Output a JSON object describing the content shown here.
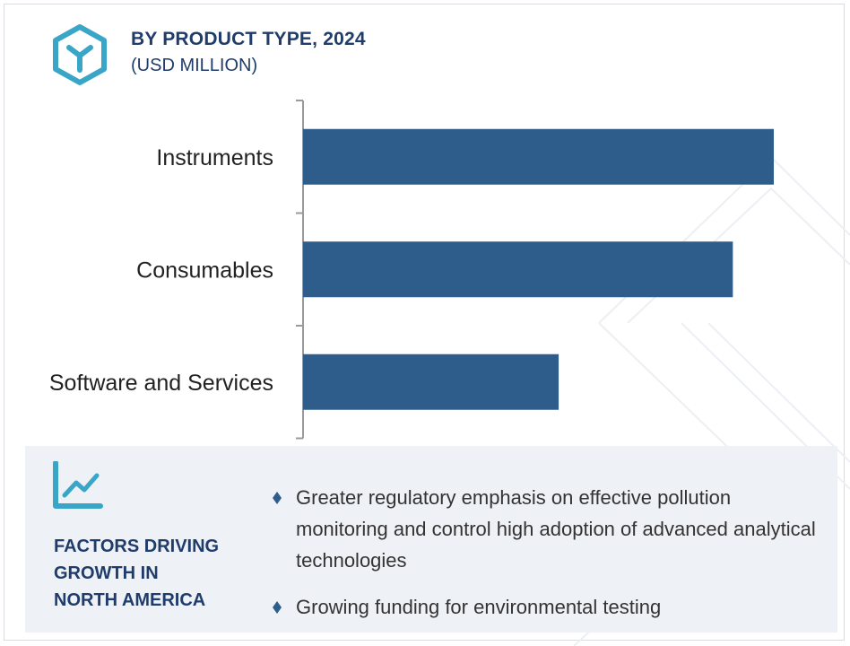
{
  "header": {
    "title": "BY PRODUCT TYPE, 2024",
    "subtitle": "(USD MILLION)",
    "icon": "cube-icon"
  },
  "colors": {
    "bar": "#2e5d8b",
    "title": "#1f3c6b",
    "icon": "#3aa6c7",
    "panel": "#eef1f6"
  },
  "chart_data": {
    "type": "bar",
    "orientation": "horizontal",
    "categories": [
      "Instruments",
      "Consumables",
      "Software and Services"
    ],
    "values": [
      100,
      91.3,
      54.3
    ],
    "title": "BY PRODUCT TYPE, 2024",
    "subtitle": "(USD MILLION)",
    "xlim": [
      0,
      100
    ],
    "grid": false,
    "legend": "none"
  },
  "factors": {
    "title_lines": [
      "FACTORS DRIVING",
      "GROWTH IN",
      "NORTH AMERICA"
    ],
    "icon": "trend-chart-icon",
    "bullets": [
      "Greater regulatory emphasis on effective pollution monitoring and control high adoption of advanced analytical technologies",
      "Growing funding for environmental testing"
    ]
  }
}
